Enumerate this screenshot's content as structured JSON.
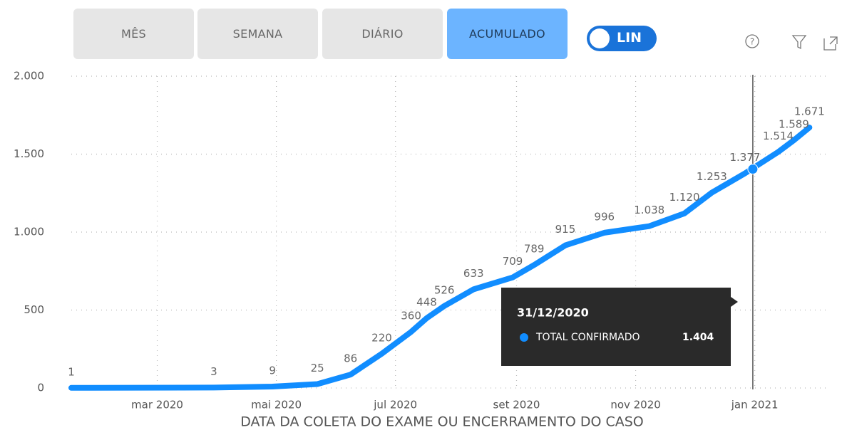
{
  "buttons": [
    {
      "label": "MÊS",
      "active": false
    },
    {
      "label": "SEMANA",
      "active": false
    },
    {
      "label": "DIÁRIO",
      "active": false
    },
    {
      "label": "ACUMULADO",
      "active": true
    }
  ],
  "toggle": "LIN",
  "chart_data": {
    "type": "line",
    "x_label": "DATA DA COLETA DO EXAME OU ENCERRAMENTO DO CASO",
    "series": [
      {
        "name": "TOTAL CONFIRMADO",
        "color": "#118dff",
        "x": [
          "2020-01-17",
          "2020-03-30",
          "2020-04-29",
          "2020-05-22",
          "2020-06-08",
          "2020-06-24",
          "2020-07-09",
          "2020-07-17",
          "2020-07-26",
          "2020-08-10",
          "2020-08-30",
          "2020-09-10",
          "2020-09-26",
          "2020-10-16",
          "2020-11-08",
          "2020-11-26",
          "2020-12-10",
          "2020-12-27",
          "2021-01-13",
          "2021-01-21",
          "2021-01-29"
        ],
        "values": [
          1,
          3,
          9,
          25,
          86,
          220,
          360,
          448,
          526,
          633,
          709,
          789,
          915,
          996,
          1038,
          1120,
          1253,
          1377,
          1514,
          1589,
          1671
        ],
        "value_labels": [
          "1",
          "3",
          "9",
          "25",
          "86",
          "220",
          "360",
          "448",
          "526",
          "633",
          "709",
          "789",
          "915",
          "996",
          "1.038",
          "1.120",
          "1.253",
          "1.377",
          "1.514",
          "1.589",
          "1.671"
        ]
      }
    ],
    "xlim": [
      "2020-01-17",
      "2021-02-07"
    ],
    "xticks": [
      {
        "value": "2020-03-01",
        "label": "mar 2020"
      },
      {
        "value": "2020-05-01",
        "label": "mai 2020"
      },
      {
        "value": "2020-07-01",
        "label": "jul 2020"
      },
      {
        "value": "2020-09-01",
        "label": "set 2020"
      },
      {
        "value": "2020-11-01",
        "label": "nov 2020"
      },
      {
        "value": "2021-01-01",
        "label": "jan 2021"
      }
    ],
    "ylim": [
      0,
      2000
    ],
    "yticks": [
      0,
      500,
      {
        "value": 1000,
        "label": "1.000"
      },
      {
        "value": 1500,
        "label": "1.500"
      },
      {
        "value": 2000,
        "label": "2.000"
      }
    ],
    "grid": true,
    "tooltip": {
      "date": "31/12/2020",
      "series": "TOTAL CONFIRMADO",
      "value": 1404,
      "label": "1.404"
    }
  }
}
